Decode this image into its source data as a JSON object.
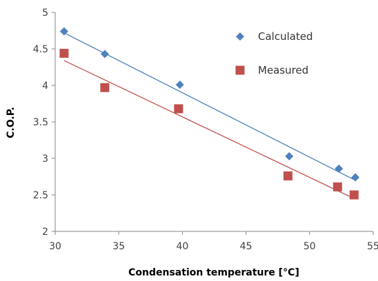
{
  "chart_data": {
    "type": "scatter",
    "title": "",
    "xlabel": "Condensation temperature [°C]",
    "ylabel": "C.O.P.",
    "xlim": [
      30,
      55
    ],
    "ylim": [
      2,
      5
    ],
    "x_ticks": [
      30,
      35,
      40,
      45,
      50,
      55
    ],
    "y_ticks": [
      2,
      2.5,
      3,
      3.5,
      4,
      4.5,
      5
    ],
    "x_tick_labels": [
      "30",
      "35",
      "40",
      "45",
      "50",
      "55"
    ],
    "y_tick_labels": [
      "2",
      "2.5",
      "3",
      "3.5",
      "4",
      "4.5",
      "5"
    ],
    "grid": false,
    "legend_position": "top-right",
    "series": [
      {
        "name": "Calculated",
        "marker": "diamond",
        "color": "#4f81bd",
        "x": [
          30.7,
          33.9,
          39.8,
          48.4,
          52.3,
          53.6
        ],
        "y": [
          4.74,
          4.43,
          4.01,
          3.03,
          2.86,
          2.74
        ],
        "trendline": {
          "x": [
            30.7,
            53.6
          ],
          "y": [
            4.72,
            2.7
          ]
        }
      },
      {
        "name": "Measured",
        "marker": "square",
        "color": "#c0504d",
        "x": [
          30.7,
          33.9,
          39.7,
          48.3,
          52.2,
          53.5
        ],
        "y": [
          4.44,
          3.97,
          3.68,
          2.76,
          2.61,
          2.5
        ],
        "trendline": {
          "x": [
            30.7,
            53.5
          ],
          "y": [
            4.34,
            2.45
          ]
        }
      }
    ]
  }
}
